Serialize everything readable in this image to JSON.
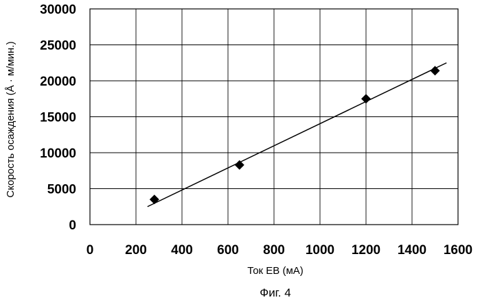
{
  "chart_data": {
    "type": "scatter",
    "xlabel": "Ток ЕВ (мА)",
    "ylabel": "Скорость осаждения (Å · м/мин.)",
    "caption": "Фиг. 4",
    "xlim": [
      0,
      1600
    ],
    "ylim": [
      0,
      30000
    ],
    "xticks": [
      "0",
      "200",
      "400",
      "600",
      "800",
      "1000",
      "1200",
      "1400",
      "1600"
    ],
    "yticks": [
      "0",
      "5000",
      "10000",
      "15000",
      "20000",
      "25000",
      "30000"
    ],
    "grid": true,
    "points": [
      {
        "x": 280,
        "y": 3500
      },
      {
        "x": 650,
        "y": 8300
      },
      {
        "x": 1200,
        "y": 17500
      },
      {
        "x": 1500,
        "y": 21400
      }
    ],
    "trendline": {
      "x": [
        250,
        1550
      ],
      "y": [
        2500,
        22500
      ]
    },
    "marker": "diamond",
    "color": "#000000"
  }
}
